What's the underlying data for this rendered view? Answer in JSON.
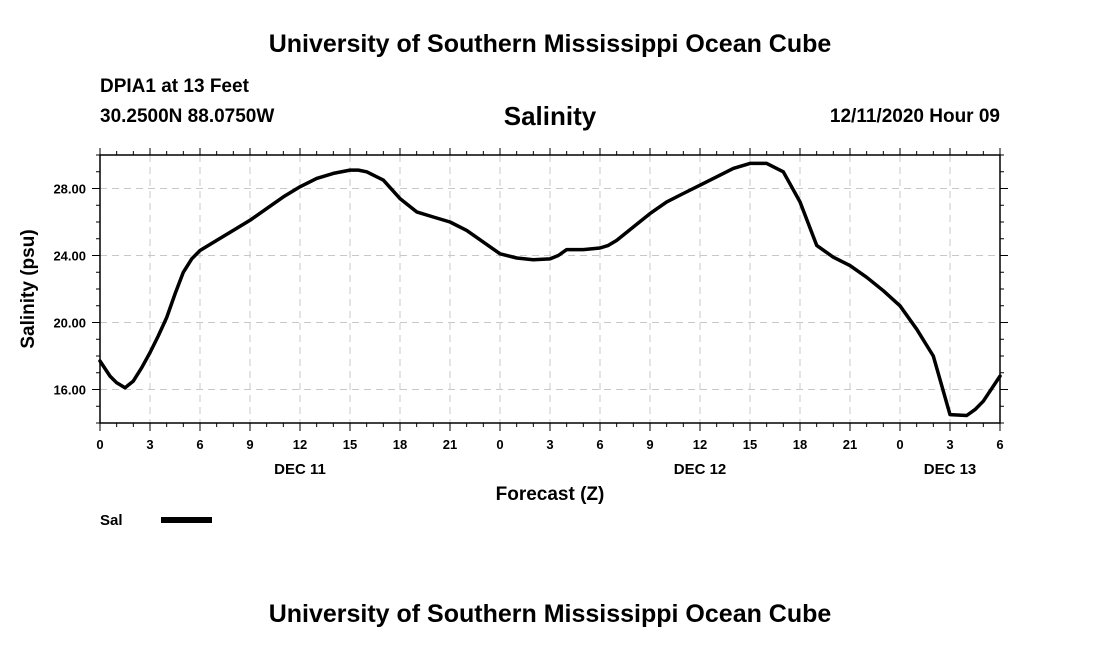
{
  "header": {
    "title": "University of Southern Mississippi Ocean Cube",
    "station_name": "DPIA1 at 13 Feet",
    "station_coords": "30.2500N 88.0750W",
    "datetime": "12/11/2020 Hour 09"
  },
  "footer": {
    "title": "University of Southern Mississippi Ocean Cube"
  },
  "chart_data": {
    "type": "line",
    "title": "Salinity",
    "xlabel": "Forecast (Z)",
    "ylabel": "Salinity (psu)",
    "xlim": [
      0,
      54
    ],
    "ylim": [
      14,
      30
    ],
    "grid": true,
    "x_ticks": [
      0,
      3,
      6,
      9,
      12,
      15,
      18,
      21,
      24,
      27,
      30,
      33,
      36,
      39,
      42,
      45,
      48,
      51,
      54
    ],
    "x_tick_labels": [
      "0",
      "3",
      "6",
      "9",
      "12",
      "15",
      "18",
      "21",
      "0",
      "3",
      "6",
      "9",
      "12",
      "15",
      "18",
      "21",
      "0",
      "3",
      "6"
    ],
    "date_labels": [
      {
        "x": 12,
        "label": "DEC 11"
      },
      {
        "x": 36,
        "label": "DEC 12"
      },
      {
        "x": 51,
        "label": "DEC 13"
      }
    ],
    "y_ticks": [
      16,
      20,
      24,
      28
    ],
    "y_tick_labels": [
      "16.00",
      "20.00",
      "24.00",
      "28.00"
    ],
    "legend": {
      "placement": "bottom-left",
      "label": "Sal",
      "color": "#000000"
    },
    "series": [
      {
        "name": "Sal",
        "color": "#000000",
        "x": [
          0,
          0.6,
          1,
          1.5,
          2,
          2.5,
          3,
          3.5,
          4,
          4.5,
          5,
          5.5,
          6,
          7,
          8,
          9,
          10,
          11,
          12,
          13,
          14,
          15,
          15.5,
          16,
          17,
          18,
          19,
          20,
          21,
          22,
          23,
          24,
          25,
          26,
          27,
          27.5,
          28,
          29,
          30,
          30.5,
          31,
          32,
          33,
          34,
          35,
          36,
          37,
          38,
          39,
          40,
          41,
          42,
          43,
          44,
          45,
          46,
          47,
          48,
          49,
          50,
          51,
          52,
          52.5,
          53,
          54
        ],
        "y": [
          17.7,
          16.8,
          16.4,
          16.1,
          16.5,
          17.3,
          18.2,
          19.2,
          20.3,
          21.7,
          23.0,
          23.8,
          24.3,
          24.9,
          25.5,
          26.1,
          26.8,
          27.5,
          28.1,
          28.6,
          28.9,
          29.1,
          29.1,
          29.0,
          28.5,
          27.4,
          26.6,
          26.3,
          26.0,
          25.5,
          24.8,
          24.1,
          23.85,
          23.75,
          23.8,
          24.0,
          24.35,
          24.35,
          24.45,
          24.6,
          24.9,
          25.7,
          26.5,
          27.2,
          27.7,
          28.2,
          28.7,
          29.2,
          29.5,
          29.5,
          29.0,
          27.2,
          24.6,
          23.9,
          23.4,
          22.7,
          21.9,
          21.0,
          19.6,
          18.0,
          14.5,
          14.45,
          14.8,
          15.3,
          16.8
        ]
      }
    ]
  }
}
